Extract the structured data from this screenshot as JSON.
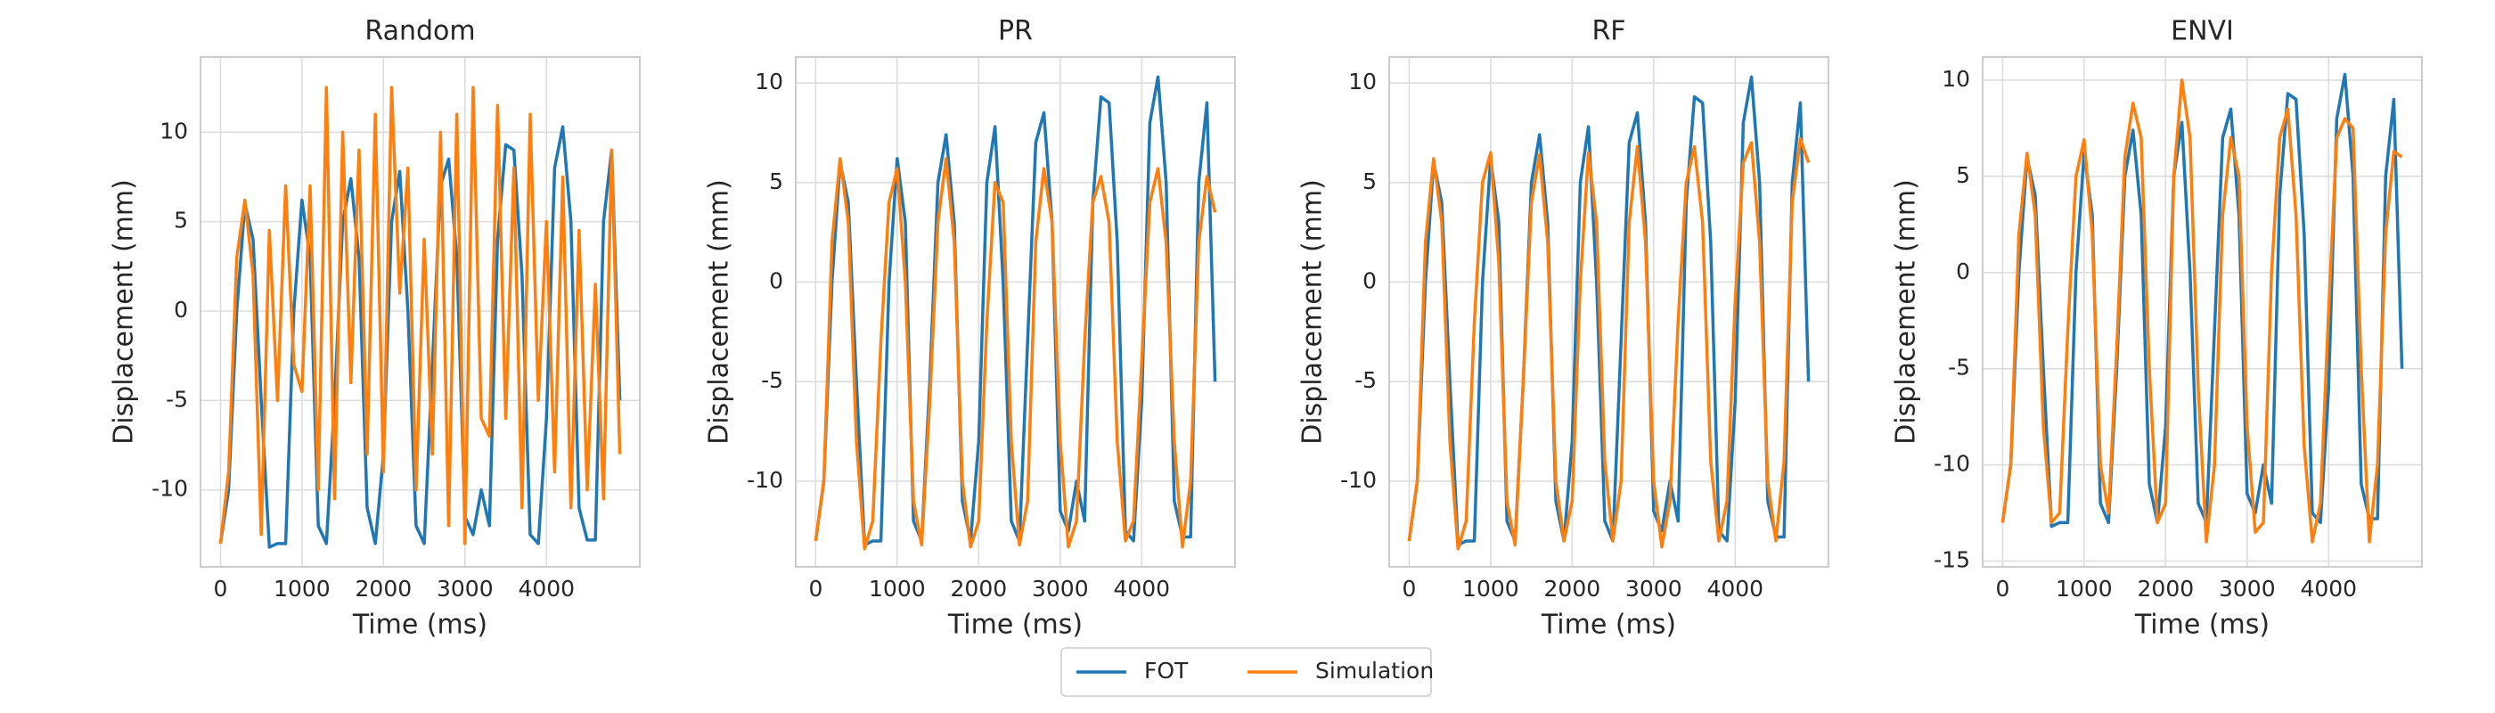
{
  "chart_data": [
    {
      "type": "line",
      "title": "Random",
      "x_label": "Time (ms)",
      "y_label": "Displacement (mm)",
      "x": [
        0,
        100,
        200,
        300,
        400,
        500,
        600,
        700,
        800,
        900,
        1000,
        1100,
        1200,
        1300,
        1400,
        1500,
        1600,
        1700,
        1800,
        1900,
        2000,
        2100,
        2200,
        2300,
        2400,
        2500,
        2600,
        2700,
        2800,
        2900,
        3000,
        3100,
        3200,
        3300,
        3400,
        3500,
        3600,
        3700,
        3800,
        3900,
        4000,
        4100,
        4200,
        4300,
        4400,
        4500,
        4600,
        4700,
        4800,
        4900
      ],
      "series": [
        {
          "name": "FOT",
          "color": "#1f77b4",
          "values": [
            -13,
            -10,
            0,
            6,
            4,
            -5,
            -13.2,
            -13,
            -13,
            0,
            6.2,
            3,
            -12,
            -13,
            -5,
            5,
            7.4,
            3,
            -11,
            -13,
            -8,
            5,
            7.8,
            0,
            -12,
            -13,
            -3,
            7,
            8.5,
            3,
            -11.5,
            -12.5,
            -10,
            -12,
            4,
            9.3,
            9,
            2,
            -12.5,
            -13,
            -6,
            8,
            10.3,
            5,
            -11,
            -12.8,
            -12.8,
            5,
            9,
            -5
          ]
        },
        {
          "name": "Simulation",
          "color": "#ff7f0e",
          "values": [
            -13,
            -9,
            3,
            6.2,
            2,
            -12.5,
            4.5,
            -5,
            7,
            -3,
            -4.5,
            7,
            -10,
            12.5,
            -10.5,
            10,
            -4,
            9,
            -8,
            11,
            -9,
            12.5,
            1,
            8,
            -10,
            4,
            -8,
            10,
            -12,
            11,
            -13,
            12.5,
            -6,
            -7,
            11.5,
            -6,
            8,
            -11,
            11,
            -5,
            5,
            -9,
            7.5,
            -11,
            4.5,
            -10,
            1.5,
            -10.5,
            9,
            -8
          ]
        }
      ],
      "xlim": [
        -245,
        5145
      ],
      "xticks": [
        0,
        1000,
        2000,
        3000,
        4000
      ],
      "ylim": [
        -14.3,
        14.2
      ],
      "yticks": [
        -10,
        -5,
        0,
        5,
        10
      ],
      "grid": true
    },
    {
      "type": "line",
      "title": "PR",
      "x_label": "Time (ms)",
      "y_label": "Displacement (mm)",
      "x": [
        0,
        100,
        200,
        300,
        400,
        500,
        600,
        700,
        800,
        900,
        1000,
        1100,
        1200,
        1300,
        1400,
        1500,
        1600,
        1700,
        1800,
        1900,
        2000,
        2100,
        2200,
        2300,
        2400,
        2500,
        2600,
        2700,
        2800,
        2900,
        3000,
        3100,
        3200,
        3300,
        3400,
        3500,
        3600,
        3700,
        3800,
        3900,
        4000,
        4100,
        4200,
        4300,
        4400,
        4500,
        4600,
        4700,
        4800,
        4900
      ],
      "series": [
        {
          "name": "FOT",
          "color": "#1f77b4",
          "values": [
            -13,
            -10,
            0,
            6,
            4,
            -5,
            -13.2,
            -13,
            -13,
            0,
            6.2,
            3,
            -12,
            -13,
            -5,
            5,
            7.4,
            3,
            -11,
            -13,
            -8,
            5,
            7.8,
            0,
            -12,
            -13,
            -3,
            7,
            8.5,
            3,
            -11.5,
            -12.5,
            -10,
            -12,
            4,
            9.3,
            9,
            2,
            -12.5,
            -13,
            -6,
            8,
            10.3,
            5,
            -11,
            -12.8,
            -12.8,
            5,
            9,
            -5
          ]
        },
        {
          "name": "Simulation",
          "color": "#ff7f0e",
          "values": [
            -13,
            -10,
            2,
            6.2,
            3,
            -8,
            -13.4,
            -12,
            -3,
            4,
            5.7,
            0,
            -11,
            -13.2,
            -6,
            3,
            6.2,
            2,
            -10,
            -13.3,
            -12,
            -2,
            5,
            4,
            -8,
            -13.2,
            -11,
            2,
            5.7,
            3,
            -8,
            -13.3,
            -12,
            -3,
            4,
            5.3,
            3,
            -8,
            -13,
            -12,
            -4,
            4,
            5.7,
            2,
            -8,
            -13.3,
            -10,
            2,
            5.3,
            3.5
          ]
        }
      ],
      "xlim": [
        -245,
        5145
      ],
      "xticks": [
        0,
        1000,
        2000,
        3000,
        4000
      ],
      "ylim": [
        -14.3,
        11.3
      ],
      "yticks": [
        -10,
        -5,
        0,
        5,
        10
      ],
      "grid": true
    },
    {
      "type": "line",
      "title": "RF",
      "x_label": "Time (ms)",
      "y_label": "Displacement (mm)",
      "x": [
        0,
        100,
        200,
        300,
        400,
        500,
        600,
        700,
        800,
        900,
        1000,
        1100,
        1200,
        1300,
        1400,
        1500,
        1600,
        1700,
        1800,
        1900,
        2000,
        2100,
        2200,
        2300,
        2400,
        2500,
        2600,
        2700,
        2800,
        2900,
        3000,
        3100,
        3200,
        3300,
        3400,
        3500,
        3600,
        3700,
        3800,
        3900,
        4000,
        4100,
        4200,
        4300,
        4400,
        4500,
        4600,
        4700,
        4800,
        4900
      ],
      "series": [
        {
          "name": "FOT",
          "color": "#1f77b4",
          "values": [
            -13,
            -10,
            0,
            6,
            4,
            -5,
            -13.2,
            -13,
            -13,
            0,
            6.2,
            3,
            -12,
            -13,
            -5,
            5,
            7.4,
            3,
            -11,
            -13,
            -8,
            5,
            7.8,
            0,
            -12,
            -13,
            -3,
            7,
            8.5,
            3,
            -11.5,
            -12.5,
            -10,
            -12,
            4,
            9.3,
            9,
            2,
            -12.5,
            -13,
            -6,
            8,
            10.3,
            5,
            -11,
            -12.8,
            -12.8,
            5,
            9,
            -5
          ]
        },
        {
          "name": "Simulation",
          "color": "#ff7f0e",
          "values": [
            -13,
            -10,
            2,
            6.2,
            3,
            -8,
            -13.4,
            -12,
            -2,
            5,
            6.5,
            1,
            -11,
            -13.2,
            -5,
            4,
            6.4,
            2,
            -10,
            -13,
            -11,
            0,
            6.5,
            3,
            -9,
            -13,
            -10,
            3,
            6.8,
            2,
            -10,
            -13.3,
            -11,
            -2,
            5,
            6.8,
            3,
            -9,
            -13,
            -11,
            -1,
            6,
            7,
            2,
            -10,
            -13,
            -9,
            4,
            7.2,
            6
          ]
        }
      ],
      "xlim": [
        -245,
        5145
      ],
      "xticks": [
        0,
        1000,
        2000,
        3000,
        4000
      ],
      "ylim": [
        -14.3,
        11.3
      ],
      "yticks": [
        -10,
        -5,
        0,
        5,
        10
      ],
      "grid": true
    },
    {
      "type": "line",
      "title": "ENVI",
      "x_label": "Time (ms)",
      "y_label": "Displacement (mm)",
      "x": [
        0,
        100,
        200,
        300,
        400,
        500,
        600,
        700,
        800,
        900,
        1000,
        1100,
        1200,
        1300,
        1400,
        1500,
        1600,
        1700,
        1800,
        1900,
        2000,
        2100,
        2200,
        2300,
        2400,
        2500,
        2600,
        2700,
        2800,
        2900,
        3000,
        3100,
        3200,
        3300,
        3400,
        3500,
        3600,
        3700,
        3800,
        3900,
        4000,
        4100,
        4200,
        4300,
        4400,
        4500,
        4600,
        4700,
        4800,
        4900
      ],
      "series": [
        {
          "name": "FOT",
          "color": "#1f77b4",
          "values": [
            -13,
            -10,
            0,
            6,
            4,
            -5,
            -13.2,
            -13,
            -13,
            0,
            6.2,
            3,
            -12,
            -13,
            -5,
            5,
            7.4,
            3,
            -11,
            -13,
            -8,
            5,
            7.8,
            0,
            -12,
            -13,
            -3,
            7,
            8.5,
            3,
            -11.5,
            -12.5,
            -10,
            -12,
            4,
            9.3,
            9,
            2,
            -12.5,
            -13,
            -6,
            8,
            10.3,
            5,
            -11,
            -12.8,
            -12.8,
            5,
            9,
            -5
          ]
        },
        {
          "name": "Simulation",
          "color": "#ff7f0e",
          "values": [
            -13,
            -10,
            2,
            6.2,
            3,
            -8,
            -13,
            -12.5,
            -3,
            5,
            6.9,
            2,
            -10,
            -12.5,
            -4,
            6,
            8.8,
            7,
            -5,
            -13,
            -12,
            5,
            10,
            7,
            -6,
            -14,
            -10,
            3,
            7,
            5,
            -8,
            -13.5,
            -13,
            0,
            7,
            8.5,
            3,
            -9,
            -14,
            -12,
            -2,
            7,
            8,
            7.5,
            -5,
            -14,
            -10,
            2,
            6.3,
            6
          ]
        }
      ],
      "xlim": [
        -245,
        5145
      ],
      "xticks": [
        0,
        1000,
        2000,
        3000,
        4000
      ],
      "ylim": [
        -15.3,
        11.2
      ],
      "yticks": [
        -15,
        -10,
        -5,
        0,
        5,
        10
      ],
      "grid": true
    }
  ]
}
